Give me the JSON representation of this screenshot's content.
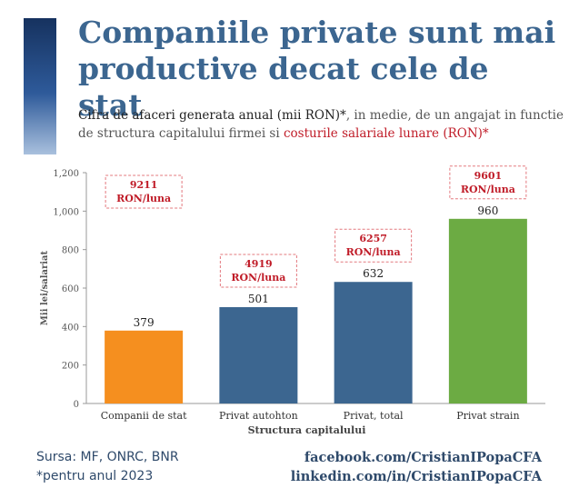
{
  "header": {
    "title_line1": "Companiile private sunt mai",
    "title_line2": "productive decat cele de stat",
    "subtitle_a": "Cifra de afaceri generata anual (mii RON)*",
    "subtitle_b": ", in medie, de un angajat in functie de structura capitalului firmei si ",
    "subtitle_c": "costurile salariale lunare (RON)*"
  },
  "colors": {
    "title": "#3c6690",
    "highlight": "#c01c28",
    "bar_stat": "#f58f1f",
    "bar_blue": "#3c6690",
    "bar_strain": "#6cab43"
  },
  "chart_data": {
    "type": "bar",
    "categories": [
      "Companii de stat",
      "Privat autohton",
      "Privat, total",
      "Privat strain"
    ],
    "values": [
      379,
      501,
      632,
      960
    ],
    "data_labels": [
      "379",
      "501",
      "632",
      "960"
    ],
    "bar_colors": [
      "#f58f1f",
      "#3c6690",
      "#3c6690",
      "#6cab43"
    ],
    "annotations": [
      {
        "value": "9211",
        "unit": "RON/luna"
      },
      {
        "value": "4919",
        "unit": "RON/luna"
      },
      {
        "value": "6257",
        "unit": "RON/luna"
      },
      {
        "value": "9601",
        "unit": "RON/luna"
      }
    ],
    "ylabel": "Mii lei/salariat",
    "xlabel": "Structura capitalului",
    "ylim": [
      0,
      1200
    ],
    "yticks": [
      0,
      200,
      400,
      600,
      800,
      1000,
      1200
    ],
    "ytick_labels": [
      "0",
      "200",
      "400",
      "600",
      "800",
      "1,000",
      "1,200"
    ],
    "grid": false
  },
  "footer": {
    "source": "Sursa: MF, ONRC, BNR",
    "note": "*pentru anul 2023",
    "facebook": "facebook.com/CristianIPopaCFA",
    "linkedin": "linkedin.com/in/CristianIPopaCFA"
  }
}
